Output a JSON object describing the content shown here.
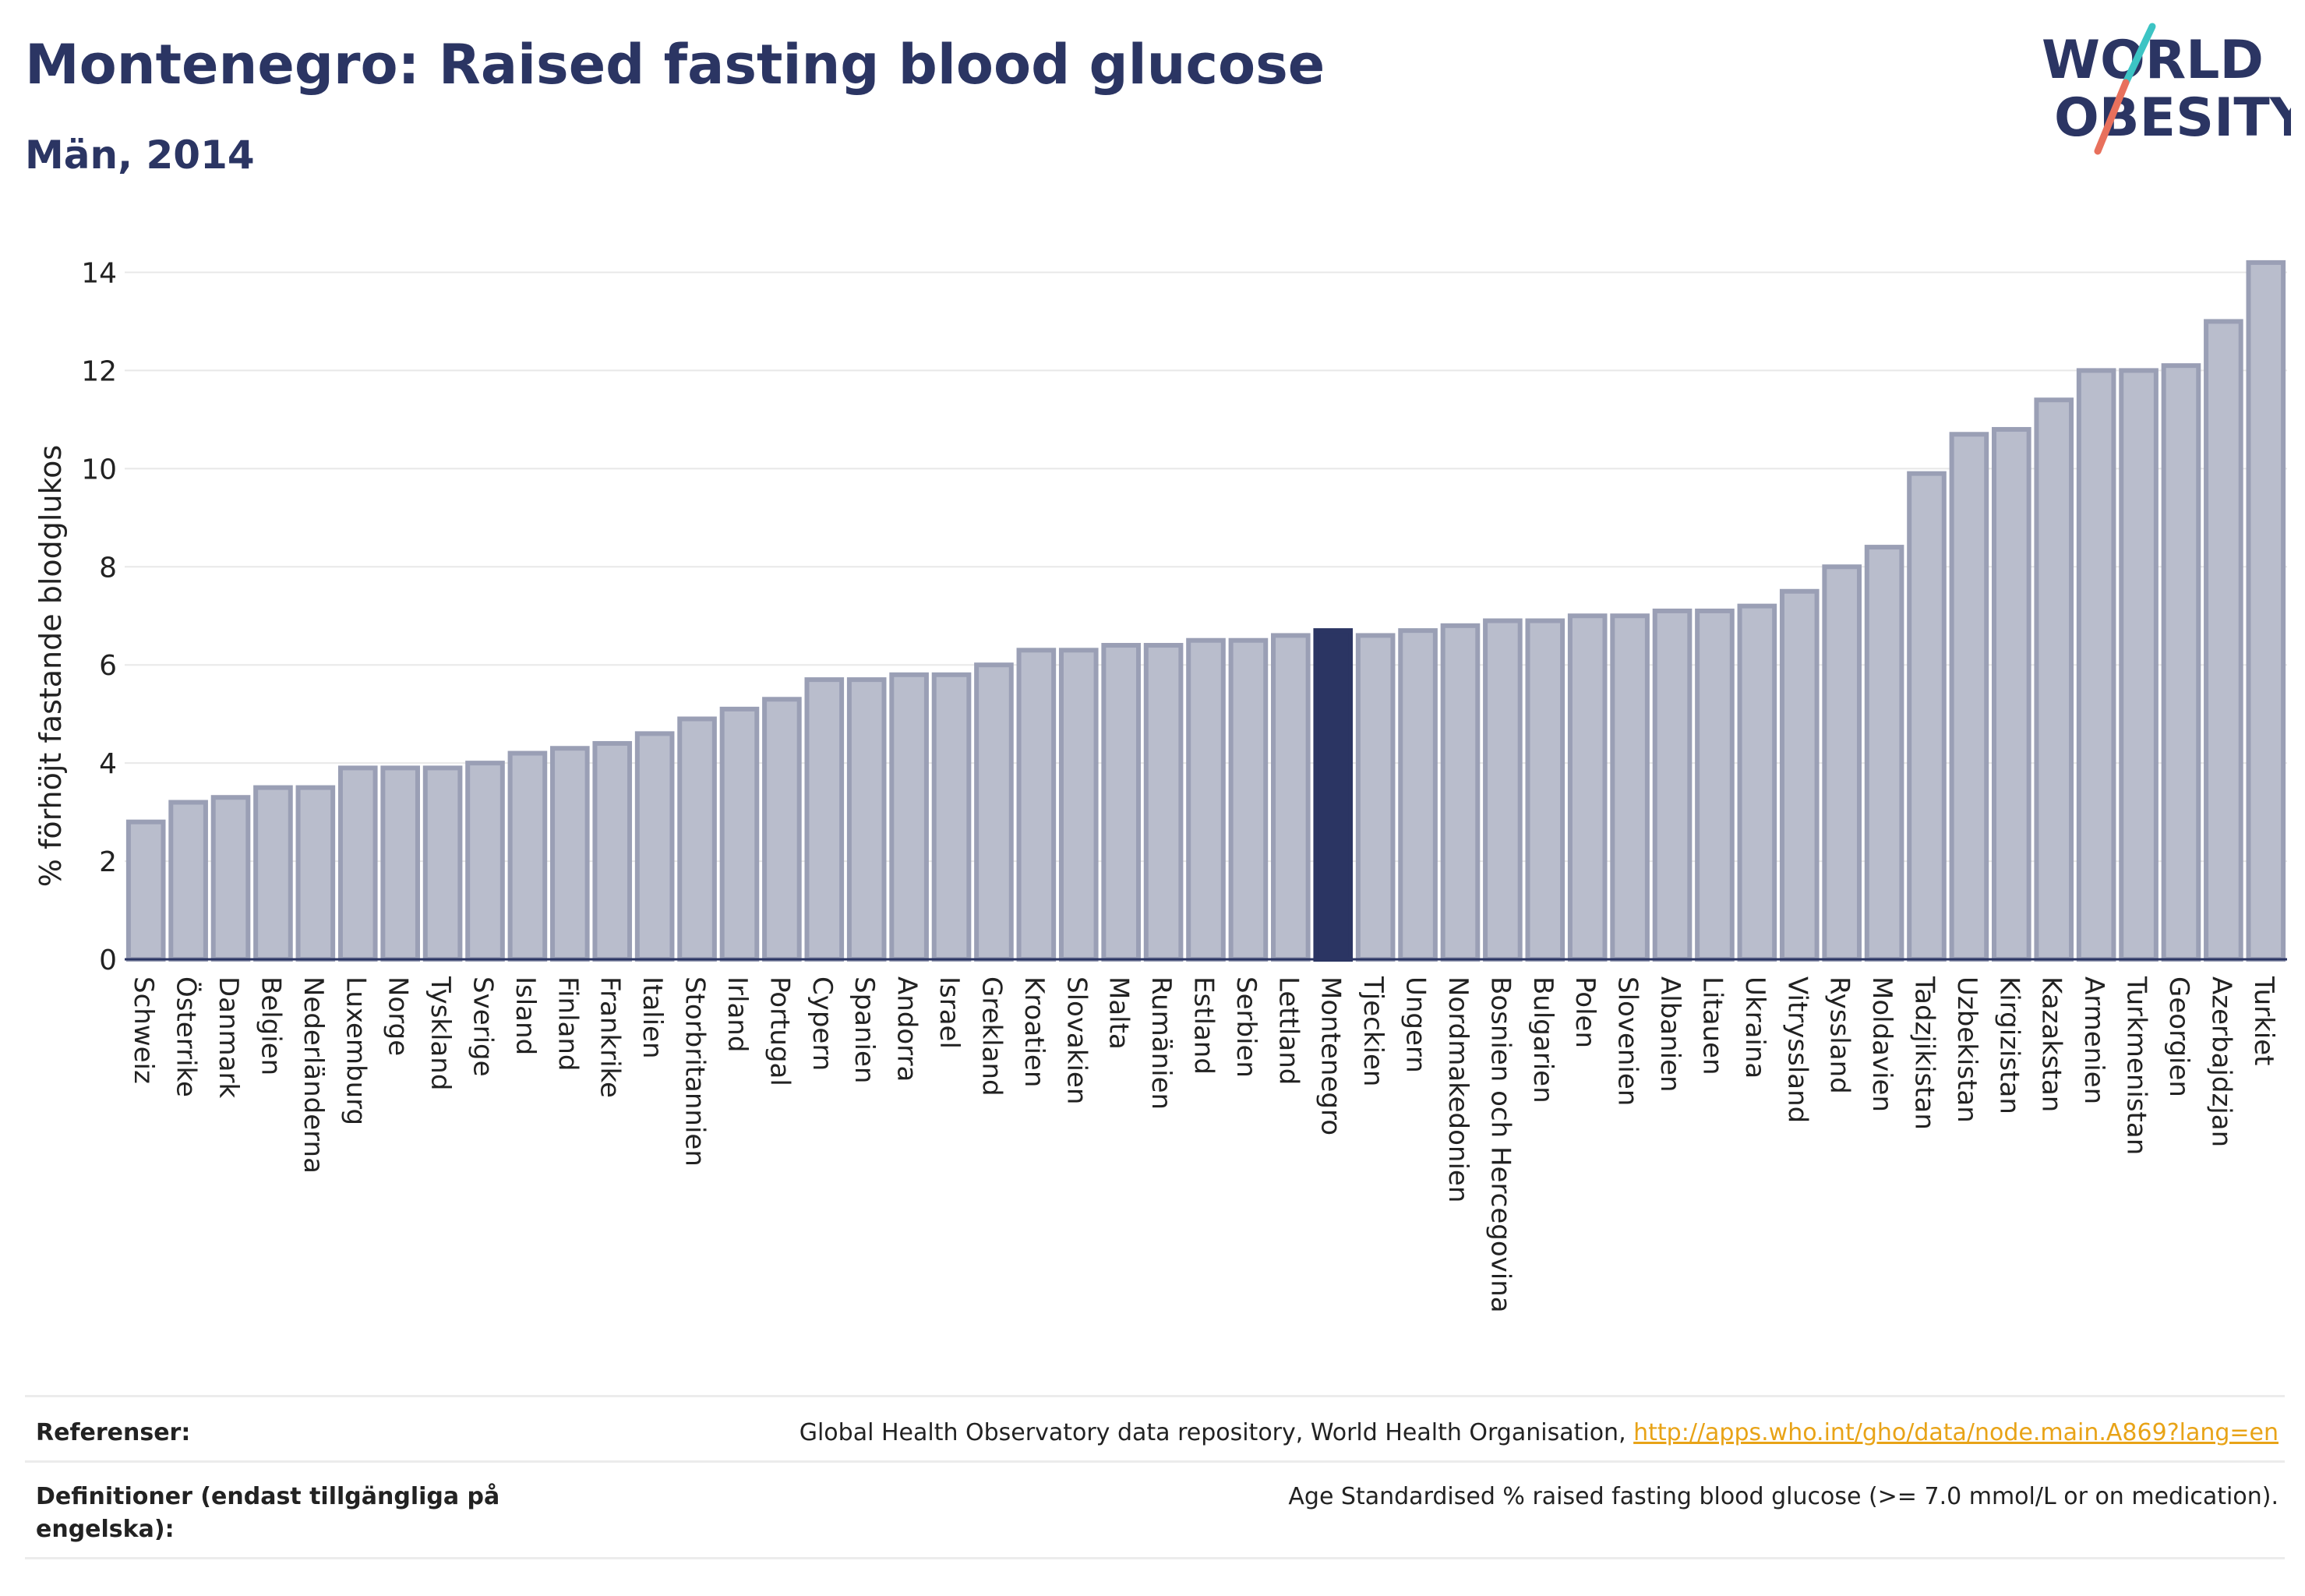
{
  "header": {
    "title": "Montenegro: Raised fasting blood glucose",
    "subtitle": "Män, 2014"
  },
  "logo": {
    "line1": "WORLD",
    "line2": "OBESITY",
    "icon": "world-obesity-logo"
  },
  "colors": {
    "text": "#2b3563",
    "bar": "#b9bdcc",
    "bar_stroke": "#9a9fb5",
    "highlight": "#2b3563",
    "grid": "#e8e8e8",
    "link": "#e8a317",
    "logo_accent_red": "#e8705c",
    "logo_accent_teal": "#3cc4c4"
  },
  "chart_data": {
    "type": "bar",
    "ylabel": "% förhöjt fastande blodglukos",
    "ylim": [
      0,
      14.5
    ],
    "yticks": [
      0,
      2,
      4,
      6,
      8,
      10,
      12,
      14
    ],
    "grid": true,
    "highlight": "Montenegro",
    "categories": [
      "Schweiz",
      "Österrike",
      "Danmark",
      "Belgien",
      "Nederländerna",
      "Luxemburg",
      "Norge",
      "Tyskland",
      "Sverige",
      "Island",
      "Finland",
      "Frankrike",
      "Italien",
      "Storbritannien",
      "Irland",
      "Portugal",
      "Cypern",
      "Spanien",
      "Andorra",
      "Israel",
      "Grekland",
      "Kroatien",
      "Slovakien",
      "Malta",
      "Rumänien",
      "Estland",
      "Serbien",
      "Lettland",
      "Montenegro",
      "Tjeckien",
      "Ungern",
      "Nordmakedonien",
      "Bosnien och Hercegovina",
      "Bulgarien",
      "Polen",
      "Slovenien",
      "Albanien",
      "Litauen",
      "Ukraina",
      "Vitryssland",
      "Ryssland",
      "Moldavien",
      "Tadzjikistan",
      "Uzbekistan",
      "Kirgizistan",
      "Kazakstan",
      "Armenien",
      "Turkmenistan",
      "Georgien",
      "Azerbajdzjan",
      "Turkiet"
    ],
    "values": [
      2.8,
      3.2,
      3.3,
      3.5,
      3.5,
      3.9,
      3.9,
      3.9,
      4.0,
      4.2,
      4.3,
      4.4,
      4.6,
      4.9,
      5.1,
      5.3,
      5.7,
      5.7,
      5.8,
      5.8,
      6.0,
      6.3,
      6.3,
      6.4,
      6.4,
      6.5,
      6.5,
      6.6,
      6.7,
      6.6,
      6.7,
      6.8,
      6.9,
      6.9,
      7.0,
      7.0,
      7.1,
      7.1,
      7.2,
      7.5,
      8.0,
      8.4,
      9.9,
      10.7,
      10.8,
      11.4,
      12.0,
      12.0,
      12.1,
      13.0,
      14.2
    ]
  },
  "references": {
    "ref_label": "Referenser:",
    "ref_text": "Global Health Observatory data repository, World Health Organisation, ",
    "ref_link": "http://apps.who.int/gho/data/node.main.A869?lang=en",
    "def_label": "Definitioner (endast tillgängliga på engelska):",
    "def_text": "Age Standardised % raised fasting blood glucose (>= 7.0 mmol/L or on medication)."
  }
}
